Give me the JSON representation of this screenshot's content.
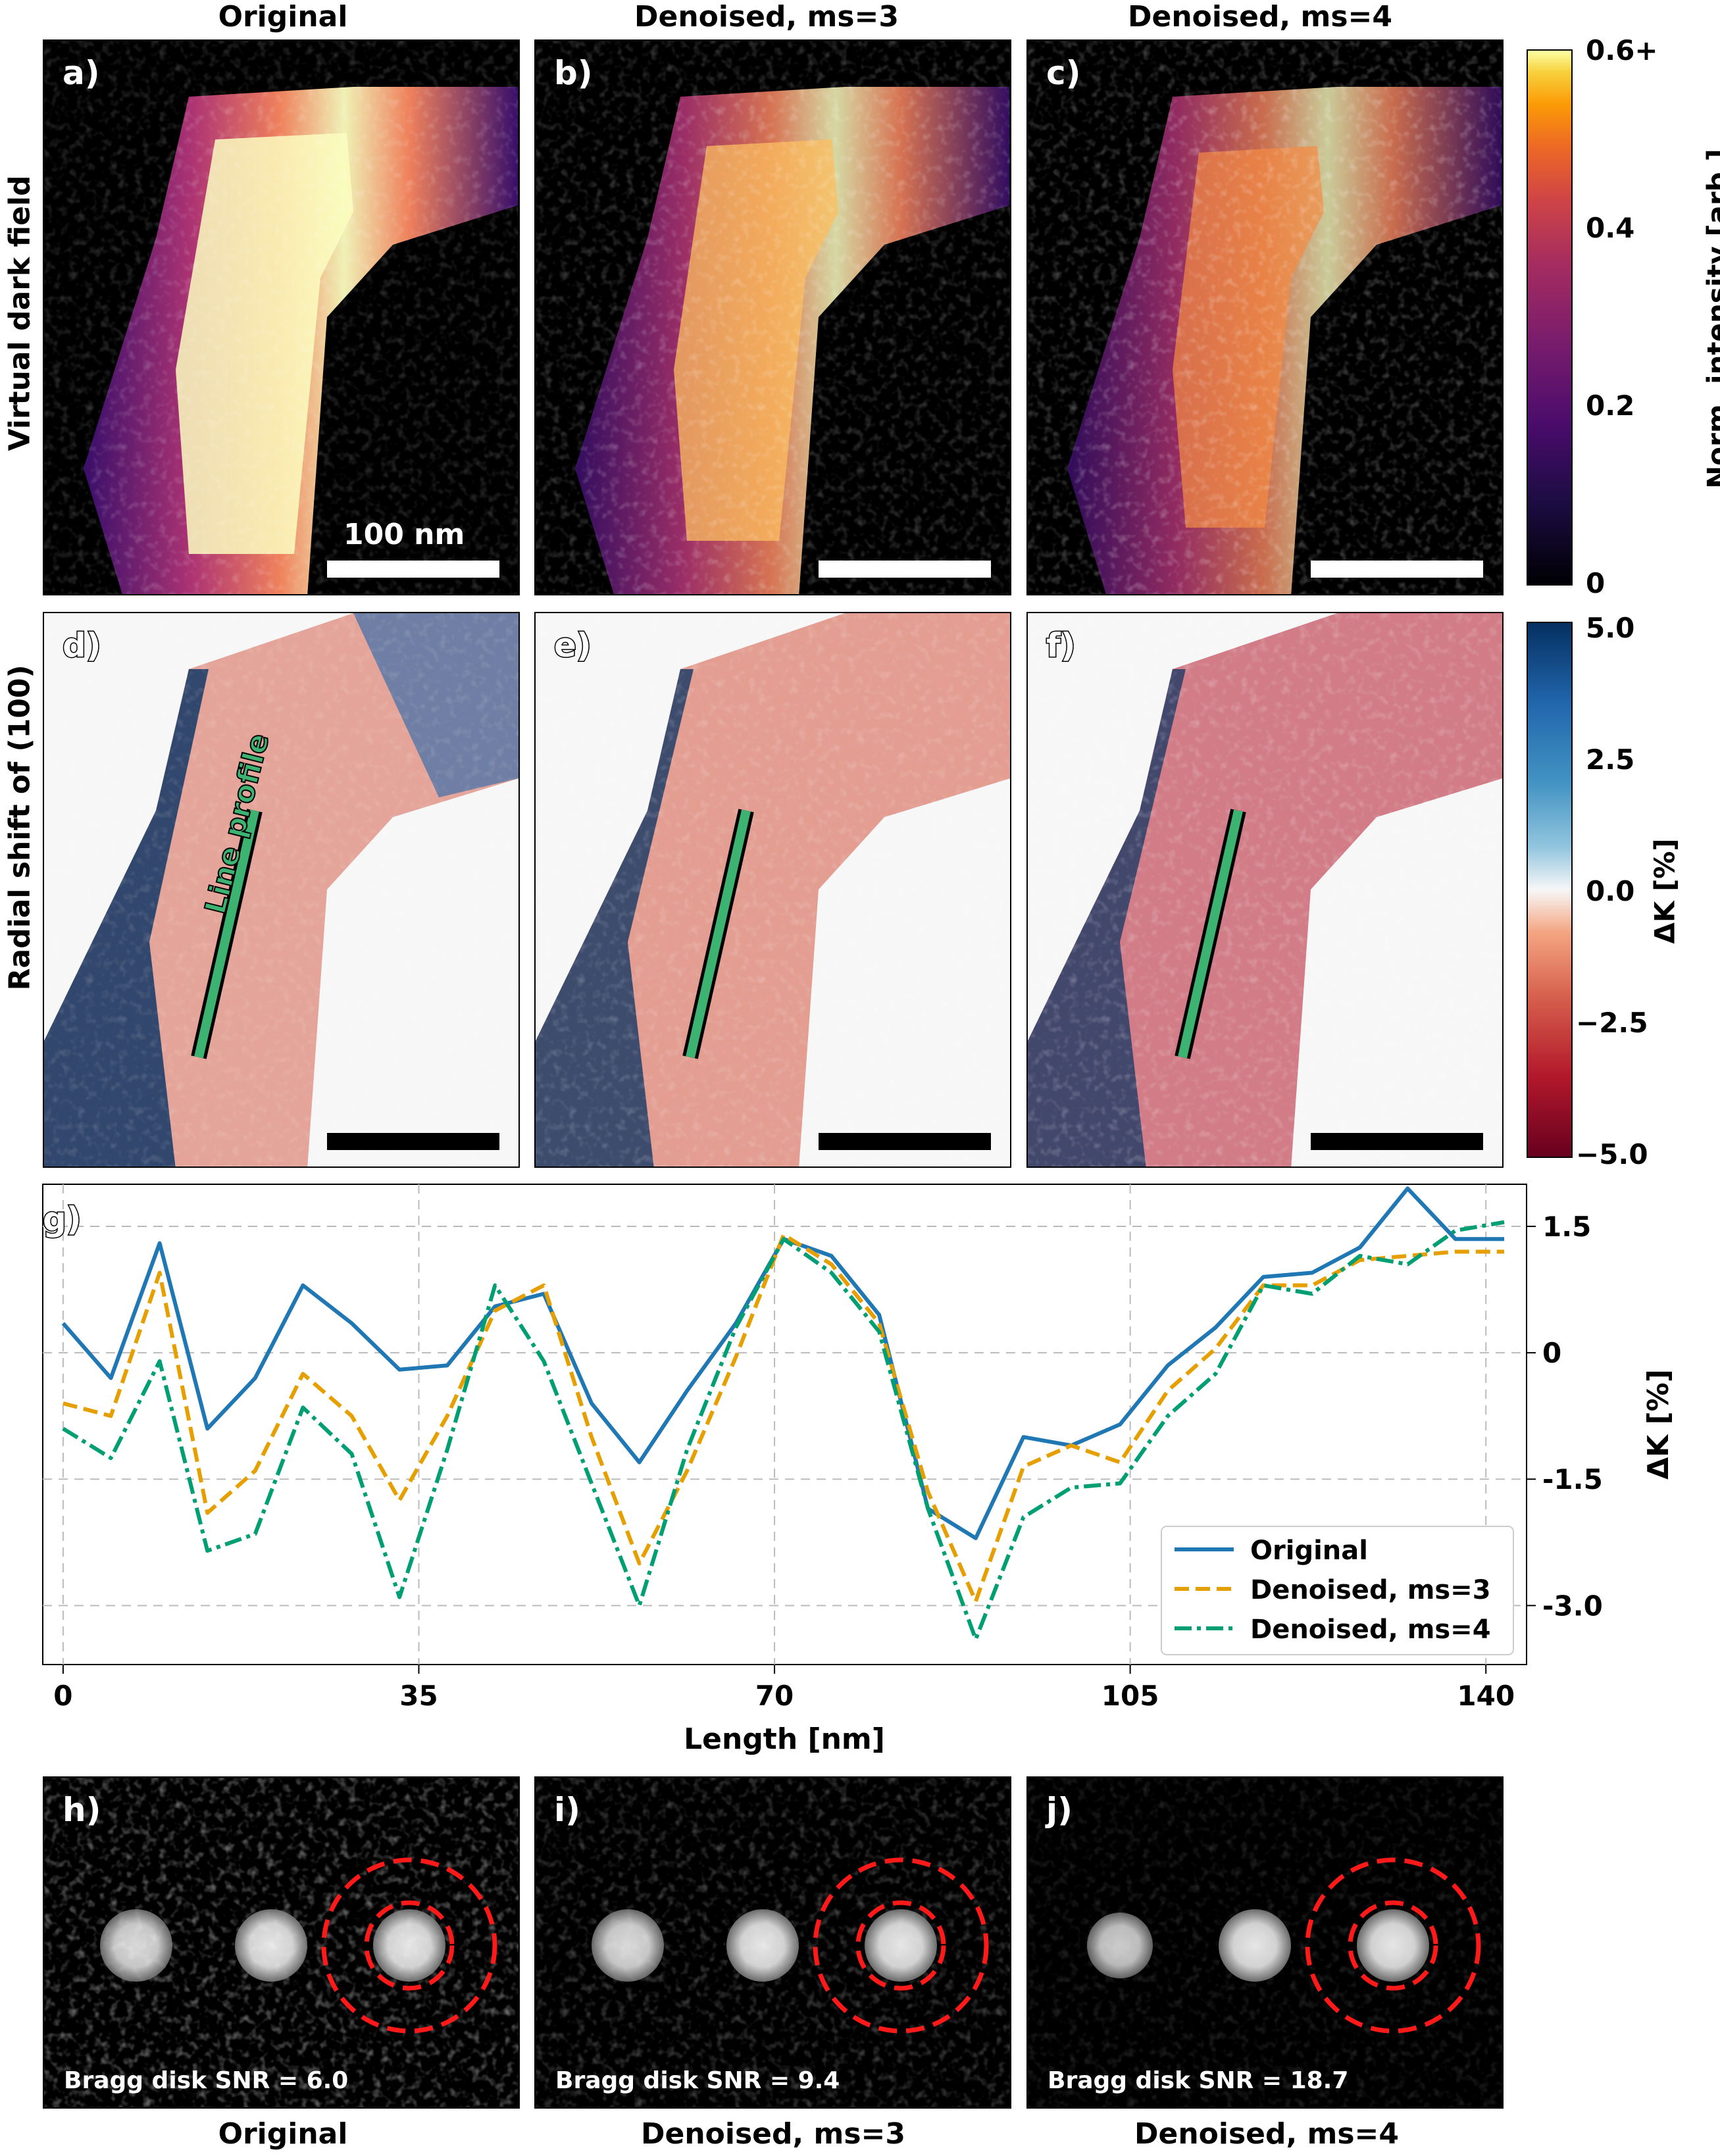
{
  "columns": [
    "Original",
    "Denoised, ms=3",
    "Denoised, ms=4"
  ],
  "rows": [
    "Virtual dark field",
    "Radial shift of (100)"
  ],
  "panel_labels": [
    "a)",
    "b)",
    "c)",
    "d)",
    "e)",
    "f)",
    "g)",
    "h)",
    "i)",
    "j)"
  ],
  "scalebar_label": "100 nm",
  "line_profile_label": "Line profile",
  "colorbar_vdf": {
    "label": "Norm. intensity [arb.]",
    "ticks": [
      "0.6+",
      "0.4",
      "0.2",
      "0"
    ]
  },
  "colorbar_shift": {
    "label": "ΔK [%]",
    "ticks": [
      "5.0",
      "2.5",
      "0.0",
      "−2.5",
      "−5.0"
    ]
  },
  "snr_texts": [
    "Bragg disk SNR = 6.0",
    "Bragg disk SNR = 9.4",
    "Bragg disk SNR = 18.7"
  ],
  "bottom_titles": [
    "Original",
    "Denoised, ms=3",
    "Denoised, ms=4"
  ],
  "colors": {
    "original": "#1f77b4",
    "ms3": "#e69f00",
    "ms4": "#009e73",
    "line_profile": "#3cb371",
    "ring": "#ff1a1a"
  },
  "chart_data": {
    "type": "line",
    "xlabel": "Length [nm]",
    "ylabel": "ΔK [%]",
    "xlim": [
      -2,
      144
    ],
    "ylim": [
      -3.7,
      2.0
    ],
    "xticks": [
      0,
      35,
      70,
      105,
      140
    ],
    "yticks": [
      1.5,
      0,
      -1.5,
      -3.0
    ],
    "ytick_labels": [
      "1.5",
      "0",
      "-1.5",
      "-3.0"
    ],
    "grid": true,
    "legend_position": "lower-right",
    "x": [
      0,
      4.7,
      9.5,
      14.2,
      18.9,
      23.6,
      28.4,
      33.1,
      37.8,
      42.5,
      47.3,
      52.0,
      56.7,
      61.4,
      66.2,
      70.9,
      75.6,
      80.3,
      85.1,
      89.8,
      94.5,
      99.2,
      104.0,
      108.7,
      113.4,
      118.1,
      122.9,
      127.6,
      132.3,
      137.0,
      141.8
    ],
    "series": [
      {
        "name": "Original",
        "style": "solid",
        "values": [
          0.35,
          -0.3,
          1.3,
          -0.9,
          -0.3,
          0.8,
          0.35,
          -0.2,
          -0.15,
          0.55,
          0.7,
          -0.6,
          -1.3,
          -0.45,
          0.35,
          1.35,
          1.15,
          0.45,
          -1.85,
          -2.2,
          -1.0,
          -1.1,
          -0.85,
          -0.15,
          0.3,
          0.9,
          0.95,
          1.25,
          1.95,
          1.35,
          1.35
        ]
      },
      {
        "name": "Denoised, ms=3",
        "style": "dashed",
        "values": [
          -0.6,
          -0.75,
          0.95,
          -1.9,
          -1.4,
          -0.25,
          -0.75,
          -1.75,
          -0.75,
          0.5,
          0.8,
          -1.0,
          -2.5,
          -1.4,
          -0.05,
          1.4,
          1.05,
          0.35,
          -1.65,
          -2.95,
          -1.35,
          -1.1,
          -1.3,
          -0.45,
          0.05,
          0.8,
          0.8,
          1.1,
          1.15,
          1.2,
          1.2
        ]
      },
      {
        "name": "Denoised, ms=4",
        "style": "dashdot",
        "values": [
          -0.9,
          -1.25,
          -0.1,
          -2.35,
          -2.15,
          -0.65,
          -1.2,
          -2.9,
          -1.15,
          0.8,
          -0.1,
          -1.55,
          -3.0,
          -1.15,
          0.3,
          1.35,
          0.95,
          0.25,
          -1.85,
          -3.4,
          -1.95,
          -1.6,
          -1.55,
          -0.75,
          -0.25,
          0.8,
          0.7,
          1.15,
          1.05,
          1.45,
          1.55
        ]
      }
    ]
  }
}
